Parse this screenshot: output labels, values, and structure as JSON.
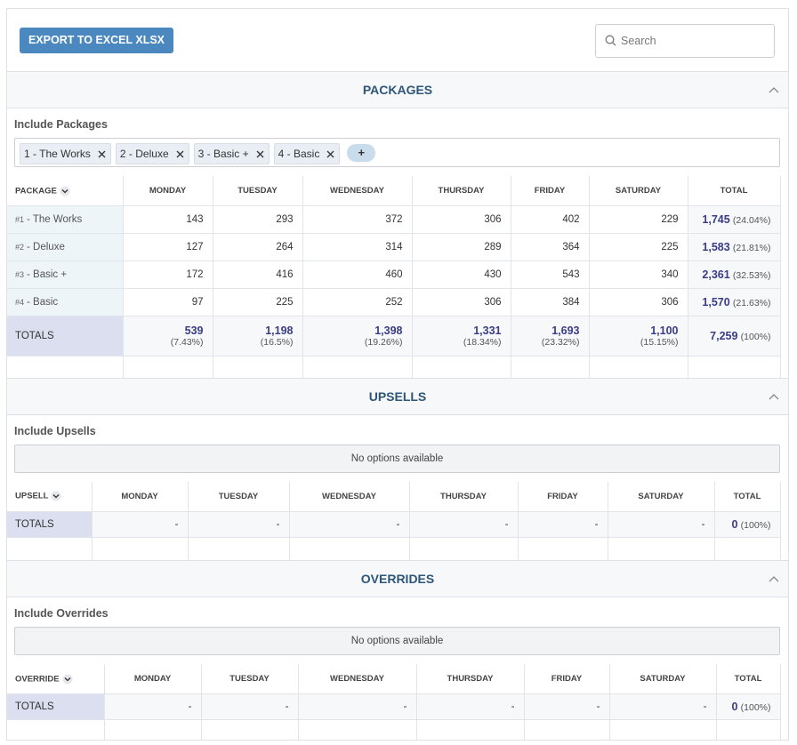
{
  "toolbar": {
    "export_button": "EXPORT TO EXCEL XLSX",
    "search_placeholder": "Search"
  },
  "sections": [
    {
      "title": "PACKAGES",
      "include_label": "Include Packages",
      "chips": [
        "1 - The Works",
        "2 - Deluxe",
        "3 - Basic +",
        "4 - Basic"
      ],
      "add_button": "+",
      "table": {
        "columns": [
          "PACKAGE",
          "MONDAY",
          "TUESDAY",
          "WEDNESDAY",
          "THURSDAY",
          "FRIDAY",
          "SATURDAY",
          "TOTAL"
        ],
        "rows": [
          {
            "num": "#1",
            "name": "- The Works",
            "cells": [
              "143",
              "293",
              "372",
              "306",
              "402",
              "229"
            ],
            "total": "1,745",
            "total_pct": "(24.04%)"
          },
          {
            "num": "#2",
            "name": "- Deluxe",
            "cells": [
              "127",
              "264",
              "314",
              "289",
              "364",
              "225"
            ],
            "total": "1,583",
            "total_pct": "(21.81%)"
          },
          {
            "num": "#3",
            "name": "- Basic +",
            "cells": [
              "172",
              "416",
              "460",
              "430",
              "543",
              "340"
            ],
            "total": "2,361",
            "total_pct": "(32.53%)"
          },
          {
            "num": "#4",
            "name": "- Basic",
            "cells": [
              "97",
              "225",
              "252",
              "306",
              "384",
              "306"
            ],
            "total": "1,570",
            "total_pct": "(21.63%)"
          }
        ],
        "totals": {
          "label": "TOTALS",
          "cells": [
            {
              "value": "539",
              "pct": "(7.43%)"
            },
            {
              "value": "1,198",
              "pct": "(16.5%)"
            },
            {
              "value": "1,398",
              "pct": "(19.26%)"
            },
            {
              "value": "1,331",
              "pct": "(18.34%)"
            },
            {
              "value": "1,693",
              "pct": "(23.32%)"
            },
            {
              "value": "1,100",
              "pct": "(15.15%)"
            }
          ],
          "total": "7,259",
          "total_pct": "(100%)"
        }
      }
    },
    {
      "title": "UPSELLS",
      "include_label": "Include Upsells",
      "empty_message": "No options available",
      "table": {
        "columns": [
          "UPSELL",
          "MONDAY",
          "TUESDAY",
          "WEDNESDAY",
          "THURSDAY",
          "FRIDAY",
          "SATURDAY",
          "TOTAL"
        ],
        "rows": [],
        "totals": {
          "label": "TOTALS",
          "cells": [
            {
              "value": "-"
            },
            {
              "value": "-"
            },
            {
              "value": "-"
            },
            {
              "value": "-"
            },
            {
              "value": "-"
            },
            {
              "value": "-"
            }
          ],
          "total": "0",
          "total_pct": "(100%)"
        }
      }
    },
    {
      "title": "OVERRIDES",
      "include_label": "Include Overrides",
      "empty_message": "No options available",
      "table": {
        "columns": [
          "OVERRIDE",
          "MONDAY",
          "TUESDAY",
          "WEDNESDAY",
          "THURSDAY",
          "FRIDAY",
          "SATURDAY",
          "TOTAL"
        ],
        "rows": [],
        "totals": {
          "label": "TOTALS",
          "cells": [
            {
              "value": "-"
            },
            {
              "value": "-"
            },
            {
              "value": "-"
            },
            {
              "value": "-"
            },
            {
              "value": "-"
            },
            {
              "value": "-"
            }
          ],
          "total": "0",
          "total_pct": "(100%)"
        }
      }
    }
  ]
}
